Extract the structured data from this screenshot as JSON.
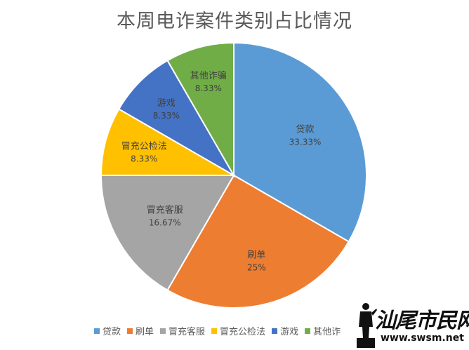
{
  "chart_data": {
    "type": "pie",
    "title": "本周电诈案件类别占比情况",
    "slices": [
      {
        "label": "贷款",
        "value": 33.33,
        "display": "33.33%",
        "color": "#5b9bd5"
      },
      {
        "label": "刷单",
        "value": 25,
        "display": "25%",
        "color": "#ed7d31"
      },
      {
        "label": "冒充客服",
        "value": 16.67,
        "display": "16.67%",
        "color": "#a5a5a5"
      },
      {
        "label": "冒充公检法",
        "value": 8.33,
        "display": "8.33%",
        "color": "#ffc000"
      },
      {
        "label": "游戏",
        "value": 8.33,
        "display": "8.33%",
        "color": "#4472c4"
      },
      {
        "label": "其他诈骗",
        "value": 8.33,
        "display": "8.33%",
        "color": "#70ad47"
      }
    ],
    "legend": {
      "position": "bottom",
      "labels": [
        "贷款",
        "刷单",
        "冒充客服",
        "冒充公检法",
        "游戏",
        "其他诈"
      ]
    }
  },
  "watermark": {
    "text": "汕尾市民网",
    "url": "www.swsm.net"
  }
}
